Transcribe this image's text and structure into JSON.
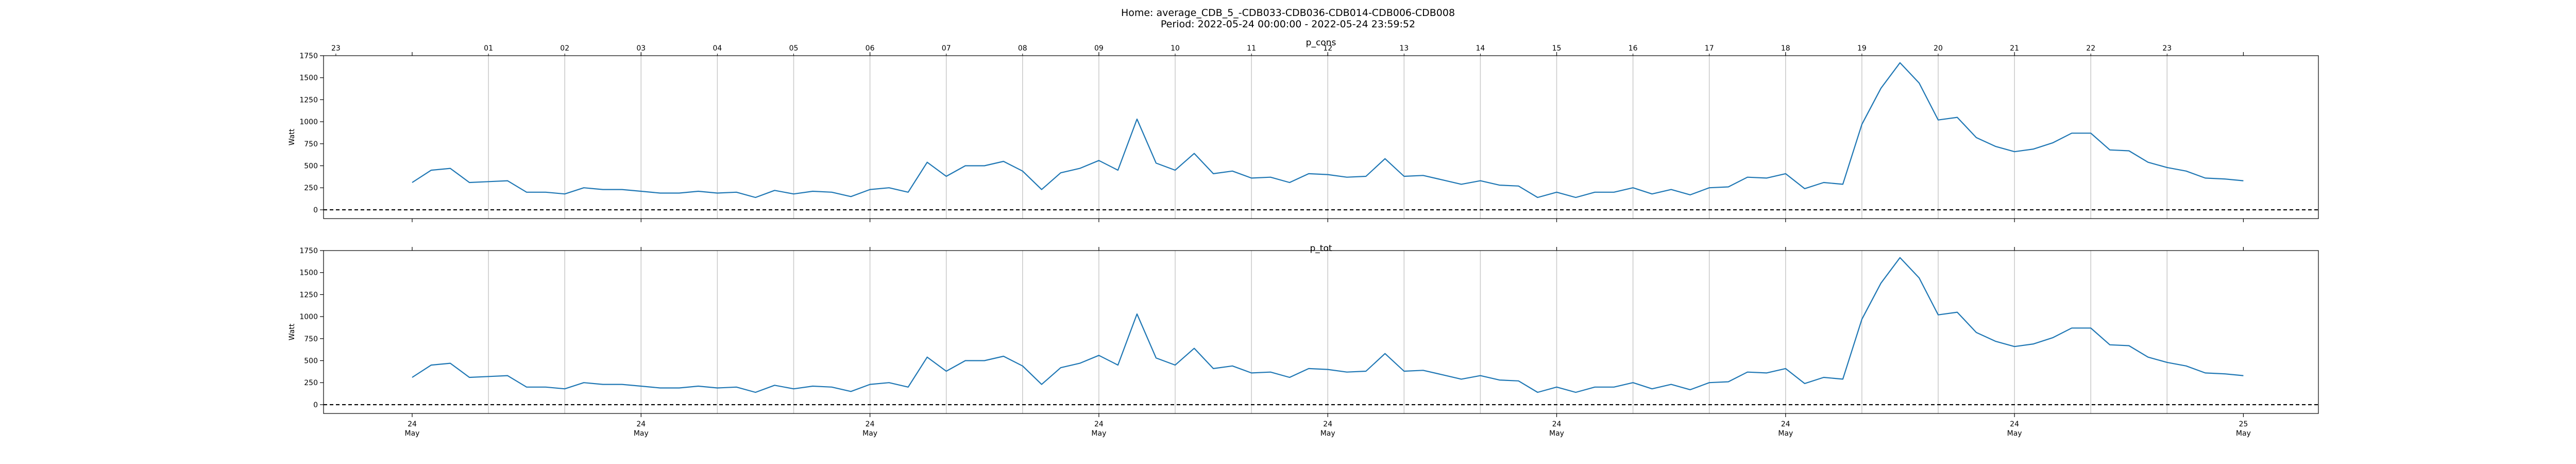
{
  "title": "Home: average_CDB_5_-CDB033-CDB036-CDB014-CDB006-CDB008",
  "subtitle": "Period: 2022-05-24 00:00:00 - 2022-05-24 23:59:52",
  "chart_data": [
    {
      "type": "line",
      "title": "p_cons",
      "ylabel": "Watt",
      "ylim": [
        -100,
        1750
      ],
      "yticks": [
        0,
        250,
        500,
        750,
        1000,
        1250,
        1500,
        1750
      ],
      "hour_ticks": [
        "23",
        "01",
        "02",
        "03",
        "04",
        "05",
        "06",
        "07",
        "08",
        "09",
        "10",
        "11",
        "12",
        "13",
        "14",
        "15",
        "16",
        "17",
        "18",
        "19",
        "20",
        "21",
        "22",
        "23"
      ],
      "hline": 0,
      "series": [
        {
          "color": "#1f77b4",
          "x_start_hour": 0,
          "x_step_hours": 0.25,
          "values": [
            310,
            450,
            470,
            310,
            320,
            330,
            200,
            200,
            180,
            250,
            230,
            230,
            210,
            190,
            190,
            210,
            190,
            200,
            140,
            220,
            180,
            210,
            200,
            150,
            230,
            250,
            200,
            540,
            380,
            500,
            500,
            550,
            440,
            230,
            420,
            470,
            560,
            450,
            1030,
            530,
            450,
            640,
            410,
            440,
            360,
            370,
            310,
            410,
            400,
            370,
            380,
            580,
            380,
            390,
            340,
            290,
            330,
            280,
            270,
            140,
            200,
            140,
            200,
            200,
            250,
            180,
            230,
            170,
            250,
            260,
            370,
            360,
            410,
            240,
            310,
            290,
            970,
            1380,
            1670,
            1440,
            1020,
            1050,
            820,
            720,
            660,
            690,
            760,
            870,
            870,
            680,
            670,
            540,
            480,
            440,
            360,
            350,
            330
          ]
        }
      ]
    },
    {
      "type": "line",
      "title": "p_tot",
      "ylabel": "Watt",
      "ylim": [
        -100,
        1750
      ],
      "yticks": [
        0,
        250,
        500,
        750,
        1000,
        1250,
        1500,
        1750
      ],
      "date_ticks": [
        {
          "day": "24",
          "month": "May"
        },
        {
          "day": "24",
          "month": "May"
        },
        {
          "day": "24",
          "month": "May"
        },
        {
          "day": "24",
          "month": "May"
        },
        {
          "day": "24",
          "month": "May"
        },
        {
          "day": "24",
          "month": "May"
        },
        {
          "day": "24",
          "month": "May"
        },
        {
          "day": "24",
          "month": "May"
        },
        {
          "day": "25",
          "month": "May"
        }
      ],
      "hline": 0,
      "series": [
        {
          "color": "#1f77b4",
          "x_start_hour": 0,
          "x_step_hours": 0.25,
          "values": [
            310,
            450,
            470,
            310,
            320,
            330,
            200,
            200,
            180,
            250,
            230,
            230,
            210,
            190,
            190,
            210,
            190,
            200,
            140,
            220,
            180,
            210,
            200,
            150,
            230,
            250,
            200,
            540,
            380,
            500,
            500,
            550,
            440,
            230,
            420,
            470,
            560,
            450,
            1030,
            530,
            450,
            640,
            410,
            440,
            360,
            370,
            310,
            410,
            400,
            370,
            380,
            580,
            380,
            390,
            340,
            290,
            330,
            280,
            270,
            140,
            200,
            140,
            200,
            200,
            250,
            180,
            230,
            170,
            250,
            260,
            370,
            360,
            410,
            240,
            310,
            290,
            970,
            1380,
            1670,
            1440,
            1020,
            1050,
            820,
            720,
            660,
            690,
            760,
            870,
            870,
            680,
            670,
            540,
            480,
            440,
            360,
            350,
            330
          ]
        }
      ]
    }
  ]
}
